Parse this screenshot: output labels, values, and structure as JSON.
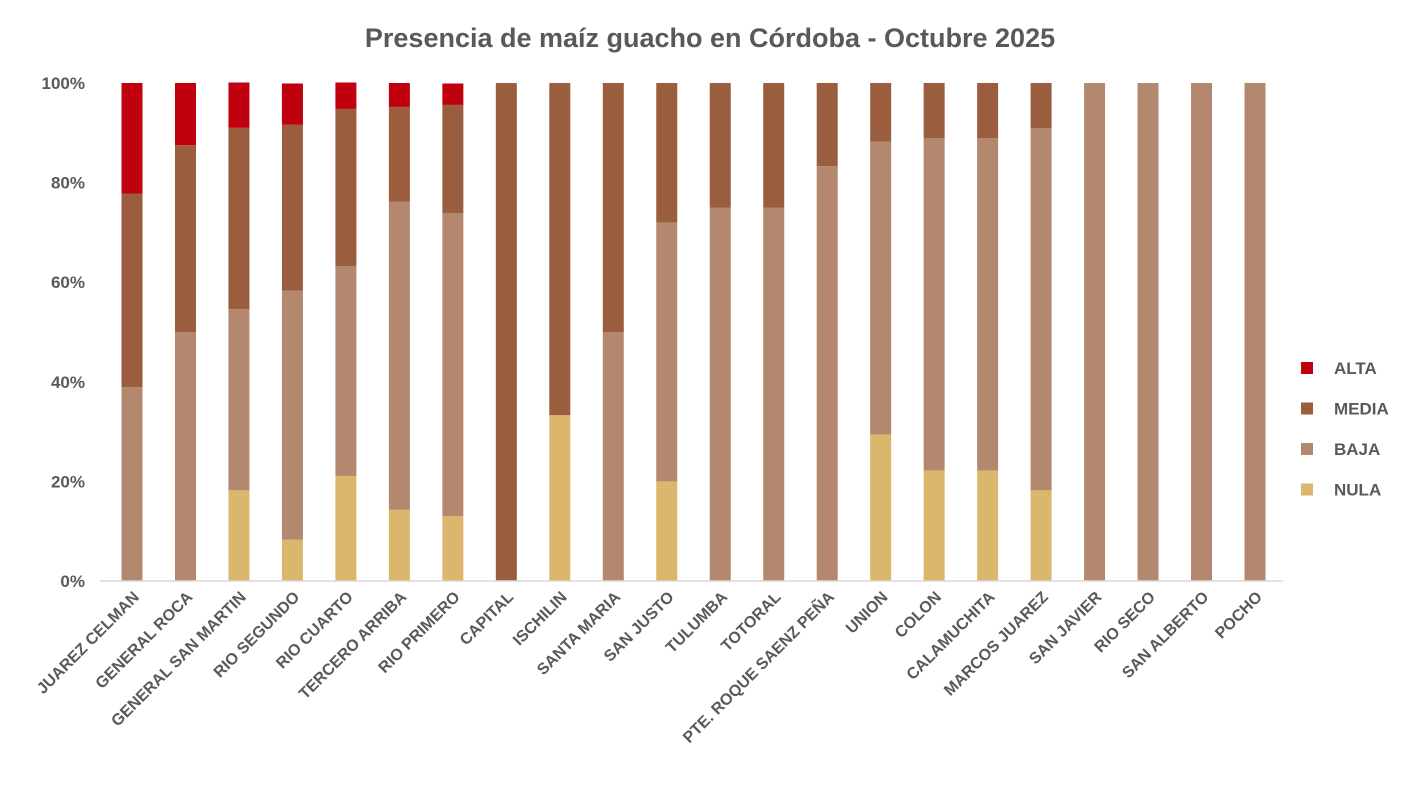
{
  "chart_data": {
    "type": "bar",
    "stacked": "percent",
    "title": "Presencia de maíz guacho en Córdoba - Octubre 2025",
    "xlabel": "",
    "ylabel": "",
    "ylim": [
      0,
      100
    ],
    "yticks": [
      "0%",
      "20%",
      "40%",
      "60%",
      "80%",
      "100%"
    ],
    "grid": false,
    "legend_position": "right",
    "categories": [
      "JUAREZ CELMAN",
      "GENERAL ROCA",
      "GENERAL SAN MARTIN",
      "RIO SEGUNDO",
      "RIO CUARTO",
      "TERCERO ARRIBA",
      "RIO PRIMERO",
      "CAPITAL",
      "ISCHILIN",
      "SANTA MARIA",
      "SAN JUSTO",
      "TULUMBA",
      "TOTORAL",
      "PTE. ROQUE SAENZ PEÑA",
      "UNION",
      "COLON",
      "CALAMUCHITA",
      "MARCOS JUAREZ",
      "SAN JAVIER",
      "RIO SECO",
      "SAN ALBERTO",
      "POCHO"
    ],
    "series": [
      {
        "name": "NULA",
        "color": "#DBB66D",
        "values": [
          0,
          0,
          18.2,
          8.3,
          21.1,
          14.3,
          13.0,
          0,
          33.3,
          0,
          20,
          0,
          0,
          0,
          29.4,
          22.2,
          22.2,
          18.2,
          0,
          0,
          0,
          0
        ]
      },
      {
        "name": "BAJA",
        "color": "#B3886E",
        "values": [
          38.9,
          50,
          36.4,
          50,
          42.1,
          61.9,
          60.9,
          0,
          0,
          50,
          52,
          75,
          75,
          83.3,
          58.8,
          66.7,
          66.7,
          72.7,
          100,
          100,
          100,
          100
        ]
      },
      {
        "name": "MEDIA",
        "color": "#9A5D3E",
        "values": [
          38.9,
          37.5,
          36.4,
          33.3,
          31.6,
          19.0,
          21.7,
          100,
          66.7,
          50,
          28,
          25,
          25,
          16.7,
          11.8,
          11.1,
          11.1,
          9.1,
          0,
          0,
          0,
          0
        ]
      },
      {
        "name": "ALTA",
        "color": "#C0000E",
        "values": [
          22.2,
          12.5,
          9.1,
          8.3,
          5.3,
          4.8,
          4.3,
          0,
          0,
          0,
          0,
          0,
          0,
          0,
          0,
          0,
          0,
          0,
          0,
          0,
          0,
          0
        ]
      }
    ]
  }
}
